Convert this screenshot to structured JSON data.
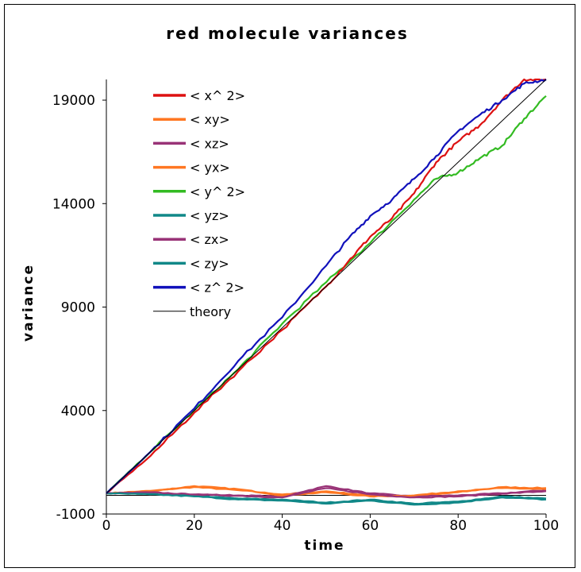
{
  "chart_data": {
    "type": "line",
    "title": "red molecule variances",
    "xlabel": "time",
    "ylabel": "variance",
    "xlim": [
      0,
      100
    ],
    "ylim": [
      -1000,
      20000
    ],
    "xticks": [
      "0",
      "20",
      "40",
      "60",
      "80",
      "100"
    ],
    "yticks": [
      "-1000",
      "4000",
      "9000",
      "14000",
      "19000"
    ],
    "legend_position": "top-left",
    "series": [
      {
        "name": "< x^ 2>",
        "color": "#dd1111",
        "x": [
          0,
          10,
          20,
          30,
          40,
          50,
          55,
          60,
          65,
          70,
          75,
          80,
          85,
          90,
          95,
          100
        ],
        "y": [
          0,
          1800,
          3900,
          5900,
          7900,
          10000,
          11200,
          12400,
          13300,
          14500,
          16000,
          17000,
          17800,
          19000,
          20000,
          20000
        ]
      },
      {
        "name": "< xy>",
        "color": "#ff7722",
        "x": [
          0,
          10,
          20,
          30,
          40,
          50,
          60,
          70,
          80,
          90,
          100
        ],
        "y": [
          0,
          120,
          300,
          150,
          -50,
          100,
          -100,
          -150,
          50,
          300,
          250
        ]
      },
      {
        "name": "< xz>",
        "color": "#993377",
        "x": [
          0,
          10,
          20,
          30,
          40,
          50,
          60,
          70,
          80,
          90,
          100
        ],
        "y": [
          0,
          40,
          -50,
          -100,
          -150,
          350,
          0,
          -150,
          -100,
          0,
          150
        ]
      },
      {
        "name": "< yx>",
        "color": "#ff7722",
        "x": [
          0,
          10,
          20,
          30,
          40,
          50,
          60,
          70,
          80,
          90,
          100
        ],
        "y": [
          0,
          100,
          350,
          200,
          -100,
          50,
          -150,
          -100,
          100,
          250,
          200
        ]
      },
      {
        "name": "< y^ 2>",
        "color": "#33bb22",
        "x": [
          0,
          10,
          20,
          30,
          40,
          50,
          60,
          70,
          75,
          80,
          85,
          90,
          95,
          100
        ],
        "y": [
          0,
          2000,
          4000,
          6000,
          8200,
          10200,
          12100,
          14200,
          15200,
          15500,
          16200,
          16800,
          18100,
          19200
        ]
      },
      {
        "name": "< yz>",
        "color": "#118888",
        "x": [
          0,
          10,
          20,
          30,
          40,
          50,
          60,
          70,
          80,
          90,
          100
        ],
        "y": [
          0,
          -30,
          -120,
          -250,
          -300,
          -450,
          -300,
          -500,
          -400,
          -150,
          -250
        ]
      },
      {
        "name": "< zx>",
        "color": "#993377",
        "x": [
          0,
          10,
          20,
          30,
          40,
          50,
          60,
          70,
          80,
          90,
          100
        ],
        "y": [
          0,
          50,
          -60,
          -120,
          -200,
          250,
          -50,
          -200,
          -150,
          -20,
          100
        ]
      },
      {
        "name": "< zy>",
        "color": "#118888",
        "x": [
          0,
          10,
          20,
          30,
          40,
          50,
          60,
          70,
          80,
          90,
          100
        ],
        "y": [
          0,
          -50,
          -150,
          -300,
          -350,
          -500,
          -350,
          -550,
          -450,
          -200,
          -300
        ]
      },
      {
        "name": "< z^ 2>",
        "color": "#1111bb",
        "x": [
          0,
          10,
          20,
          30,
          40,
          50,
          55,
          60,
          65,
          70,
          75,
          80,
          85,
          90,
          95,
          100
        ],
        "y": [
          0,
          2000,
          4100,
          6400,
          8500,
          11000,
          12300,
          13400,
          14200,
          15200,
          16300,
          17500,
          18300,
          19000,
          19800,
          20000
        ]
      },
      {
        "name": "theory",
        "color": "#000000",
        "thin": true,
        "x": [
          0,
          100
        ],
        "y": [
          0,
          20000
        ]
      }
    ],
    "extra_lines": [
      {
        "color": "#000000",
        "x": [
          0,
          100
        ],
        "y": [
          -100,
          -100
        ]
      }
    ]
  }
}
